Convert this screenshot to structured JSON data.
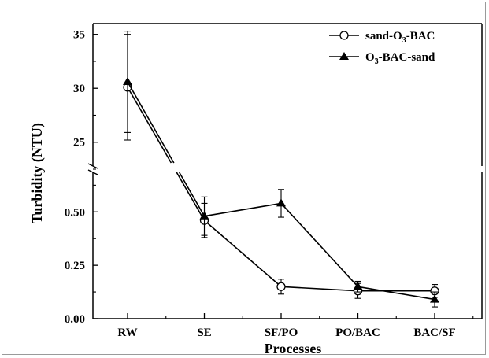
{
  "chart_data": {
    "type": "line",
    "xlabel": "Processes",
    "ylabel": "Turbidity (NTU)",
    "categories": [
      "RW",
      "SE",
      "SF/PO",
      "PO/BAC",
      "BAC/SF"
    ],
    "y_axis_break": true,
    "ylim_lower": [
      0,
      0.7
    ],
    "ylim_upper": [
      22.5,
      36
    ],
    "yticks_lower": [
      "0.00",
      "0.25",
      "0.50"
    ],
    "yticks_upper": [
      "25",
      "30",
      "35"
    ],
    "legend_position": "top-right",
    "series": [
      {
        "name_parts": [
          "sand-O",
          "3",
          "-BAC"
        ],
        "marker": "open-circle",
        "values": [
          30.1,
          0.46,
          0.15,
          0.13,
          0.13
        ],
        "error": [
          4.9,
          0.08,
          0.035,
          0.035,
          0.03
        ]
      },
      {
        "name_parts": [
          "O",
          "3",
          "-BAC-sand"
        ],
        "marker": "filled-triangle",
        "values": [
          30.6,
          0.48,
          0.54,
          0.15,
          0.09
        ],
        "error": [
          4.7,
          0.09,
          0.065,
          0.025,
          0.035
        ]
      }
    ]
  }
}
